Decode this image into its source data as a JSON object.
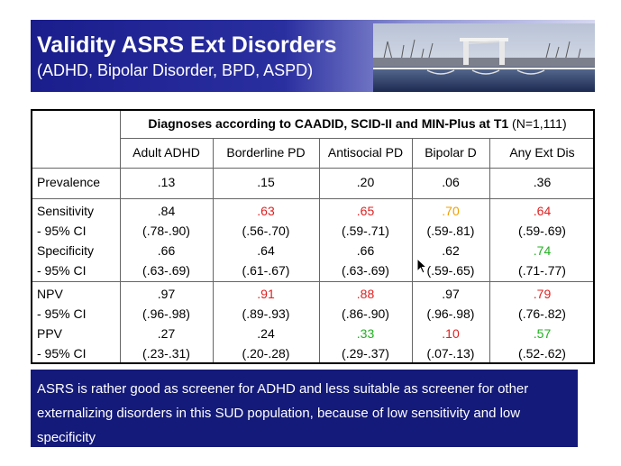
{
  "header": {
    "title": "Validity ASRS Ext Disorders",
    "subtitle": "(ADHD, Bipolar Disorder, BPD, ASPD)"
  },
  "table": {
    "caption_bold": "Diagnoses according to CAADID, SCID-II and MIN-Plus at T1",
    "caption_n": " (N=1,111)",
    "columns": [
      "Adult ADHD",
      "Borderline PD",
      "Antisocial PD",
      "Bipolar D",
      "Any Ext Dis"
    ],
    "prevalence_label": "Prevalence",
    "prevalence": [
      ".13",
      ".15",
      ".20",
      ".06",
      ".36"
    ],
    "block1_labels": [
      "Sensitivity",
      "- 95% CI",
      "Specificity",
      "- 95% CI"
    ],
    "block1": [
      [
        ".84",
        "(.78-.90)",
        ".66",
        "(.63-.69)"
      ],
      [
        ".63",
        "(.56-.70)",
        ".64",
        "(.61-.67)"
      ],
      [
        ".65",
        "(.59-.71)",
        ".66",
        "(.63-.69)"
      ],
      [
        ".70",
        "(.59-.81)",
        ".62",
        "(.59-.65)"
      ],
      [
        ".64",
        "(.59-.69)",
        ".74",
        "(.71-.77)"
      ]
    ],
    "block2_labels": [
      "NPV",
      "- 95% CI",
      "PPV",
      "- 95% CI"
    ],
    "block2": [
      [
        ".97",
        "(.96-.98)",
        ".27",
        "(.23-.31)"
      ],
      [
        ".91",
        "(.89-.93)",
        ".24",
        "(.20-.28)"
      ],
      [
        ".88",
        "(.86-.90)",
        ".33",
        "(.29-.37)"
      ],
      [
        ".97",
        "(.96-.98)",
        ".10",
        "(.07-.13)"
      ],
      [
        ".79",
        "(.76-.82)",
        ".57",
        "(.52-.62)"
      ]
    ],
    "colors": {
      "red": "#e02020",
      "orange": "#f0a000",
      "green": "#20b020"
    }
  },
  "footer": {
    "text": "ASRS is  rather good as screener for ADHD and less suitable as screener for other externalizing disorders in this SUD population, because of low sensitivity and low specificity"
  }
}
